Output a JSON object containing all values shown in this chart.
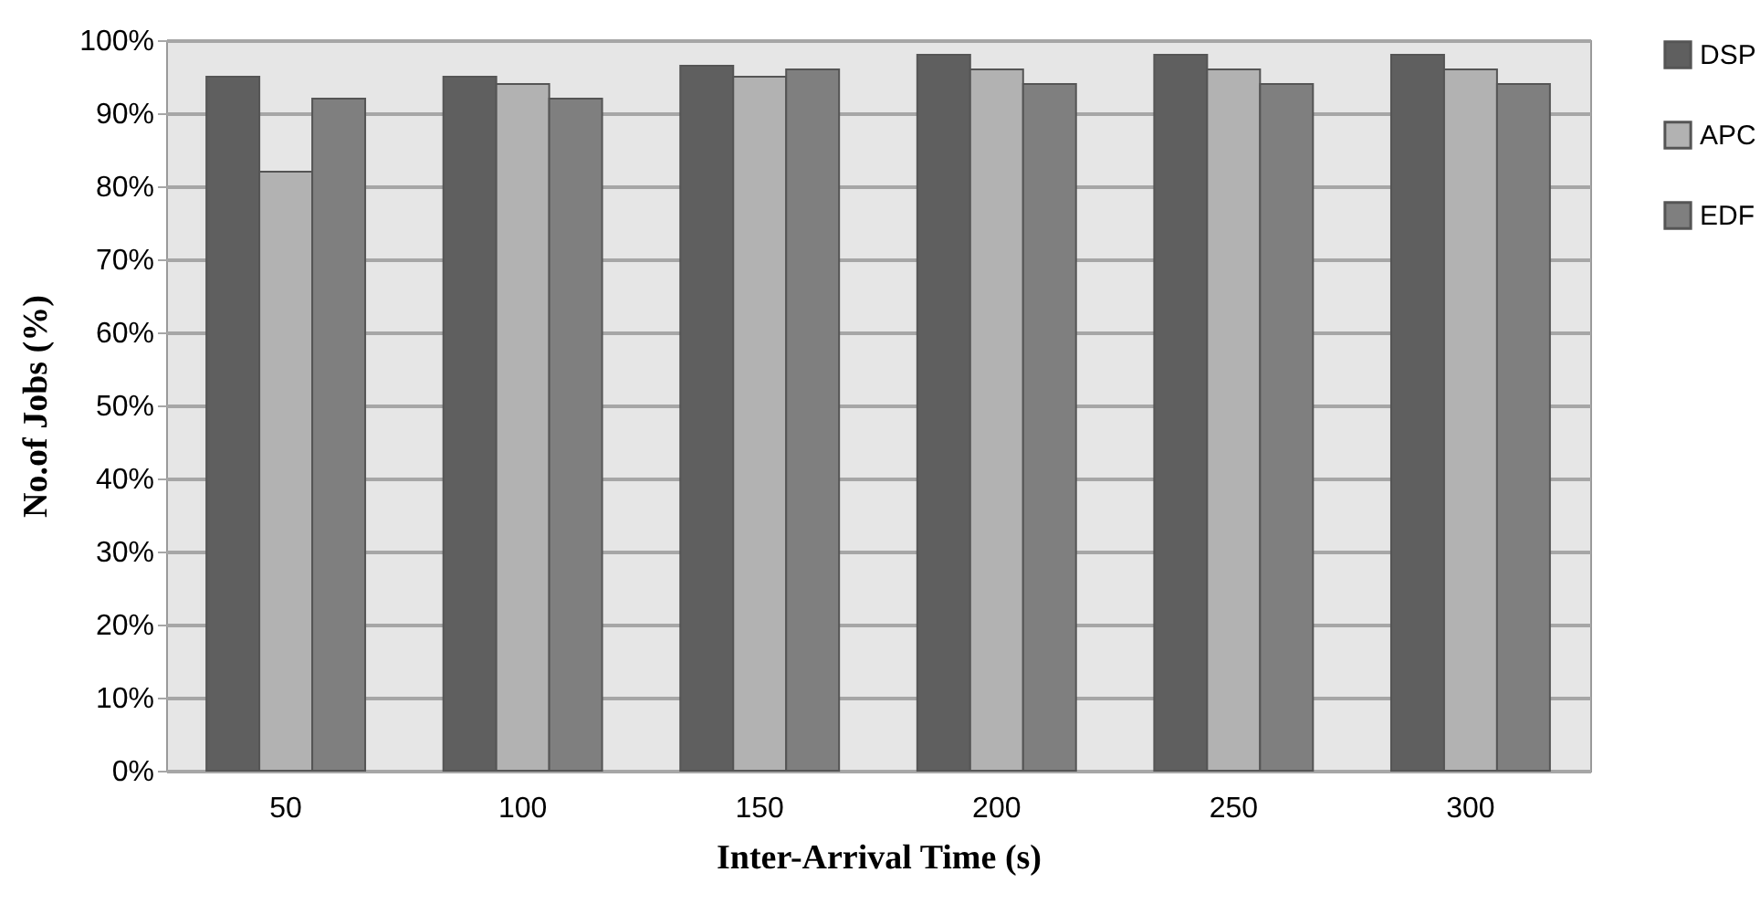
{
  "chart_data": {
    "type": "bar",
    "xlabel": "Inter-Arrival Time (s)",
    "ylabel": "No.of Jobs (%)",
    "categories": [
      "50",
      "100",
      "150",
      "200",
      "250",
      "300"
    ],
    "series": [
      {
        "name": "DSP",
        "color": "#5f5f5f",
        "values": [
          95,
          95,
          96.5,
          98,
          98,
          98
        ]
      },
      {
        "name": "APC",
        "color": "#b2b2b2",
        "values": [
          82,
          94,
          95,
          96,
          96,
          96
        ]
      },
      {
        "name": "EDF",
        "color": "#7f7f7f",
        "values": [
          92,
          92,
          96,
          94,
          94,
          94
        ]
      }
    ],
    "ylim": [
      0,
      100
    ],
    "yticks": [
      {
        "value": 0,
        "label": "0%"
      },
      {
        "value": 10,
        "label": "10%"
      },
      {
        "value": 20,
        "label": "20%"
      },
      {
        "value": 30,
        "label": "30%"
      },
      {
        "value": 40,
        "label": "40%"
      },
      {
        "value": 50,
        "label": "50%"
      },
      {
        "value": 60,
        "label": "60%"
      },
      {
        "value": 70,
        "label": "70%"
      },
      {
        "value": 80,
        "label": "80%"
      },
      {
        "value": 90,
        "label": "90%"
      },
      {
        "value": 100,
        "label": "100%"
      }
    ],
    "grid": "y",
    "legend": "right"
  }
}
